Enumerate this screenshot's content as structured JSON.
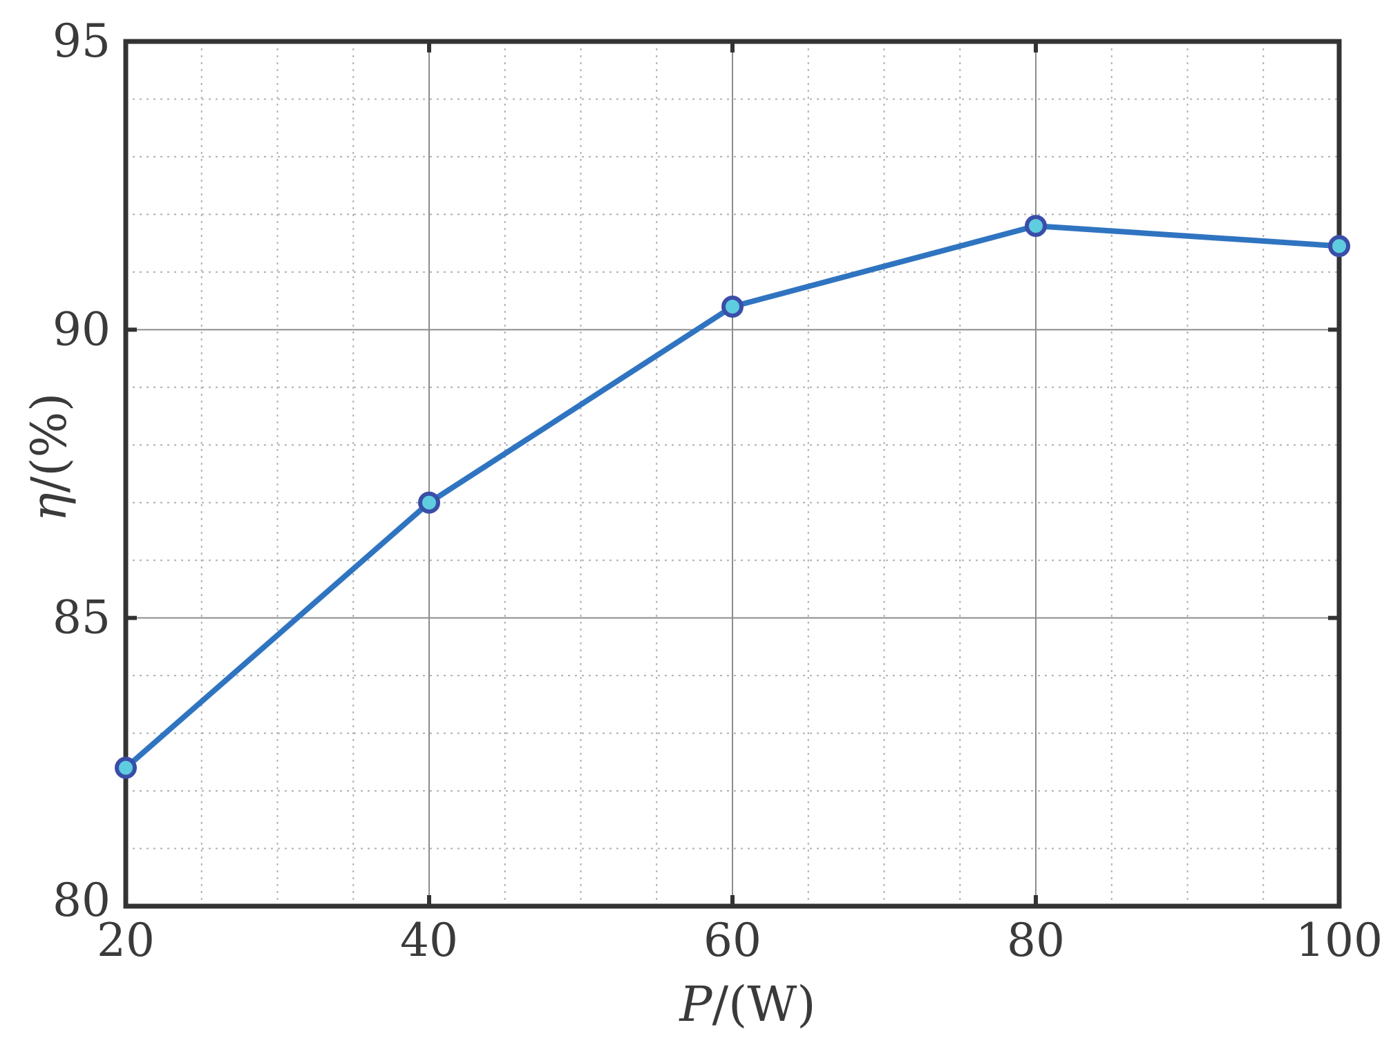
{
  "chart_data": {
    "type": "line",
    "x": [
      20,
      40,
      60,
      80,
      100
    ],
    "series": [
      {
        "values": [
          82.4,
          87.0,
          90.4,
          91.8,
          91.45
        ]
      }
    ],
    "xlim": [
      20,
      100
    ],
    "ylim": [
      80,
      95
    ],
    "xticks": [
      "20",
      "40",
      "60",
      "80",
      "100"
    ],
    "yticks": [
      "80",
      "85",
      "90",
      "95"
    ],
    "xlabel": {
      "symbol": "P",
      "rest": "/(W)"
    },
    "ylabel": {
      "symbol": "η",
      "rest": "/(%)"
    },
    "grid": {
      "major": true,
      "minor": true,
      "minor_style": "dotted"
    },
    "colors": {
      "line": "#2f74c0",
      "marker_fill": "#5fcde0",
      "marker_edge": "#3a4ea8",
      "axes": "#333333",
      "major_grid": "#8c8c8c",
      "minor_grid": "#b0b0b0"
    }
  }
}
